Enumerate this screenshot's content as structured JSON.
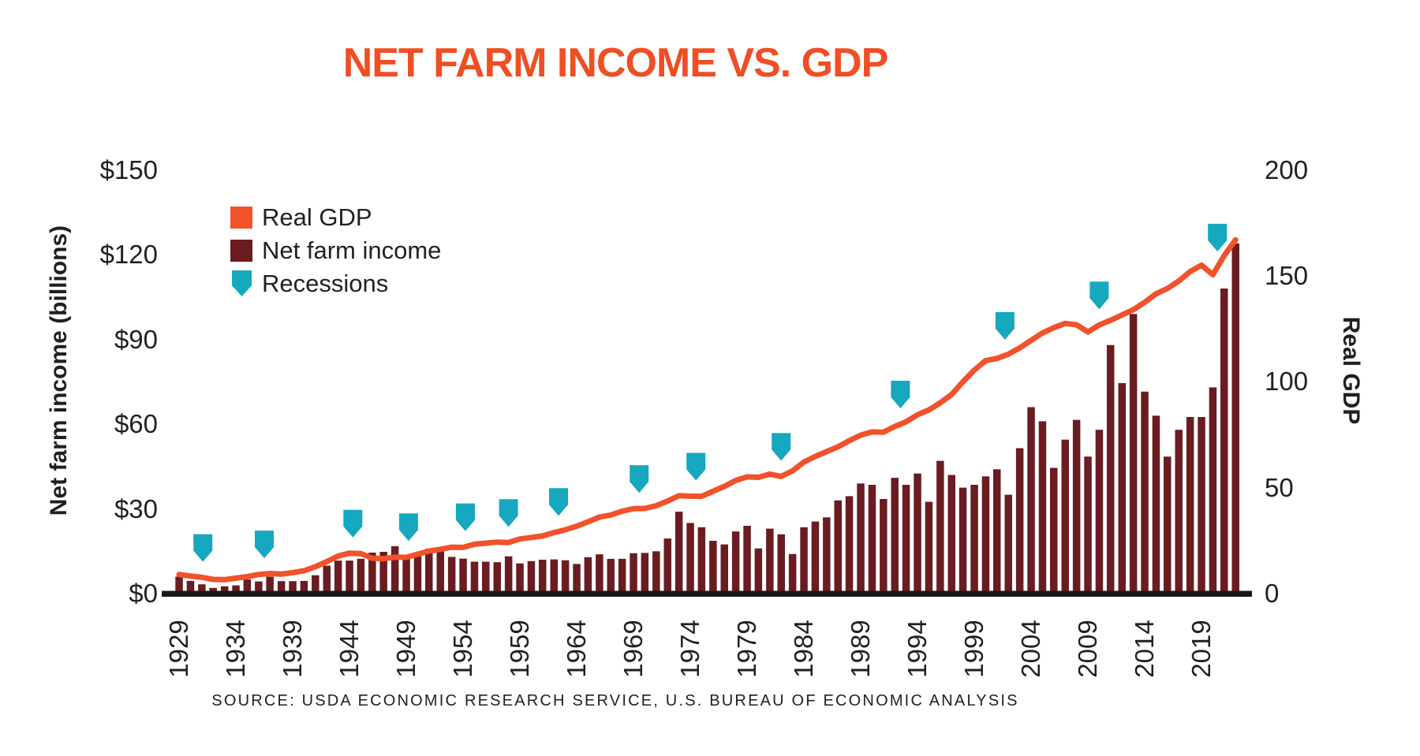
{
  "title": "NET FARM INCOME VS. GDP",
  "source": "SOURCE: USDA ECONOMIC RESEARCH SERVICE, U.S. BUREAU OF ECONOMIC ANALYSIS",
  "colors": {
    "title_orange": "#F04E23",
    "gdp_orange": "#F1522B",
    "farm_maroon": "#6A1C21",
    "recession_teal": "#16A8BE",
    "text_dark": "#231F20",
    "baseline_black": "#1A1718"
  },
  "legend": {
    "items": [
      {
        "label": "Real GDP",
        "swatch": "square",
        "color": "#F1522B"
      },
      {
        "label": "Net farm income",
        "swatch": "square",
        "color": "#6A1C21"
      },
      {
        "label": "Recessions",
        "swatch": "down-arrow",
        "color": "#16A8BE"
      }
    ]
  },
  "axes": {
    "left": {
      "title": "Net farm income (billions)",
      "tick_labels": [
        "$150",
        "$120",
        "$90",
        "$60",
        "$30",
        "$0"
      ],
      "tick_values": [
        150,
        120,
        90,
        60,
        30,
        0
      ],
      "range": [
        0,
        150
      ]
    },
    "right": {
      "title": "Real GDP",
      "tick_labels": [
        "200",
        "150",
        "100",
        "50",
        "0"
      ],
      "tick_values": [
        200,
        150,
        100,
        50,
        0
      ],
      "range": [
        0,
        200
      ]
    },
    "x": {
      "tick_labels": [
        "1929",
        "1934",
        "1939",
        "1944",
        "1949",
        "1954",
        "1959",
        "1964",
        "1969",
        "1974",
        "1979",
        "1984",
        "1989",
        "1994",
        "1999",
        "2004",
        "2009",
        "2014",
        "2019"
      ]
    }
  },
  "chart_data": {
    "type": "composite",
    "title": "NET FARM INCOME VS. GDP",
    "year_start": 1929,
    "year_end": 2022,
    "left_ylabel": "Net farm income (billions)",
    "right_ylabel": "Real GDP",
    "left_ylim": [
      0,
      150
    ],
    "right_ylim": [
      0,
      200
    ],
    "grid": false,
    "legend_position": "upper-left-inside",
    "series": [
      {
        "name": "Net farm income",
        "type": "bar",
        "axis": "left",
        "color": "#6A1C21",
        "values": [
          6.0,
          4.5,
          3.3,
          2.0,
          2.6,
          2.9,
          5.0,
          4.3,
          6.0,
          4.4,
          4.4,
          4.5,
          6.5,
          9.9,
          11.7,
          11.7,
          12.3,
          14.5,
          14.8,
          16.8,
          12.8,
          13.6,
          15.9,
          15.0,
          13.0,
          12.4,
          11.3,
          11.3,
          11.1,
          13.2,
          10.7,
          11.5,
          12.0,
          12.1,
          11.8,
          10.5,
          12.9,
          13.9,
          12.3,
          12.3,
          14.3,
          14.4,
          15.0,
          19.5,
          29.0,
          25.0,
          23.5,
          18.7,
          17.4,
          22.0,
          24.0,
          16.0,
          23.0,
          21.0,
          14.0,
          23.5,
          25.5,
          27.0,
          33.0,
          34.5,
          39.0,
          38.5,
          33.5,
          41.0,
          38.5,
          42.5,
          32.5,
          47.0,
          42.0,
          37.5,
          38.5,
          41.5,
          44.0,
          35.0,
          51.5,
          66.0,
          61.0,
          44.5,
          54.5,
          61.5,
          48.5,
          58.0,
          88.0,
          74.5,
          99.0,
          71.5,
          63.0,
          48.5,
          58.0,
          62.5,
          62.5,
          73.0,
          108.0,
          124.0
        ]
      },
      {
        "name": "Real GDP",
        "type": "line",
        "axis": "right",
        "color": "#F1522B",
        "values": [
          9.0,
          8.3,
          7.7,
          6.7,
          6.6,
          7.3,
          8.0,
          9.0,
          9.5,
          9.2,
          9.9,
          10.8,
          12.7,
          15.1,
          17.7,
          19.1,
          18.9,
          16.7,
          16.5,
          17.2,
          17.1,
          18.6,
          20.1,
          20.9,
          21.9,
          21.8,
          23.3,
          23.8,
          24.3,
          24.1,
          25.8,
          26.5,
          27.2,
          28.8,
          30.1,
          31.8,
          33.9,
          36.1,
          37.1,
          38.9,
          40.1,
          40.2,
          41.5,
          43.7,
          46.2,
          46.0,
          45.9,
          48.3,
          50.6,
          53.4,
          55.1,
          54.9,
          56.4,
          55.3,
          57.9,
          62.1,
          64.7,
          67.0,
          69.3,
          72.2,
          74.8,
          76.3,
          76.2,
          78.9,
          81.1,
          84.4,
          86.7,
          90.0,
          94.0,
          100.0,
          105.5,
          110.0,
          111.0,
          113.0,
          116.0,
          119.5,
          123.0,
          125.5,
          127.5,
          126.9,
          123.5,
          126.8,
          129.0,
          131.5,
          134.0,
          137.5,
          141.5,
          144.0,
          147.5,
          152.0,
          155.0,
          150.5,
          159.5,
          167.0
        ]
      },
      {
        "name": "Recessions",
        "type": "event_marker",
        "marker": "down-arrow",
        "color": "#16A8BE",
        "years": [
          1931.1,
          1936.5,
          1944.3,
          1949.2,
          1954.2,
          1958.0,
          1962.4,
          1969.5,
          1974.5,
          1982.0,
          1992.5,
          2001.7,
          2010.0,
          2020.4
        ]
      }
    ]
  }
}
